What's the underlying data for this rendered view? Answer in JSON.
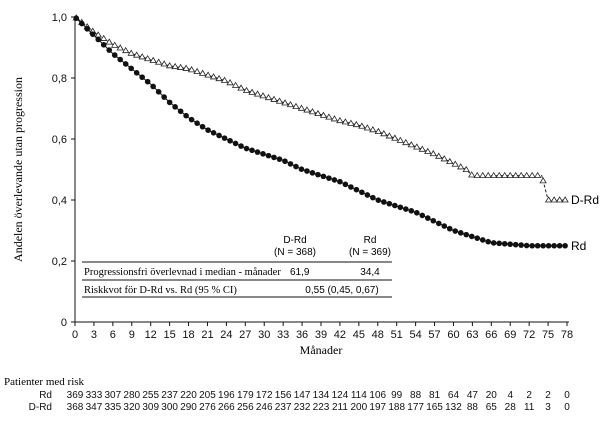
{
  "chart_data": {
    "type": "line",
    "title": "",
    "xlabel": "Månader",
    "ylabel": "Andelen överlevande utan progression",
    "xlim": [
      0,
      78
    ],
    "ylim": [
      0,
      1
    ],
    "xticks": [
      0,
      3,
      6,
      9,
      12,
      15,
      18,
      21,
      24,
      27,
      30,
      33,
      36,
      39,
      42,
      45,
      48,
      51,
      54,
      57,
      60,
      63,
      66,
      69,
      72,
      75,
      78
    ],
    "yticks": [
      "0",
      "0,2",
      "0,4",
      "0,6",
      "0,8",
      "1,0"
    ],
    "series": [
      {
        "name": "D-Rd",
        "style": "dashed",
        "marker": "triangle",
        "color": "#222222",
        "x": [
          0,
          3,
          6,
          9,
          12,
          15,
          18,
          21,
          24,
          27,
          30,
          33,
          36,
          39,
          42,
          45,
          48,
          51,
          54,
          57,
          60,
          62,
          63,
          66,
          69,
          72,
          74,
          75,
          78
        ],
        "y": [
          1.0,
          0.95,
          0.91,
          0.88,
          0.86,
          0.84,
          0.83,
          0.81,
          0.79,
          0.76,
          0.74,
          0.72,
          0.7,
          0.68,
          0.66,
          0.645,
          0.625,
          0.6,
          0.575,
          0.55,
          0.52,
          0.5,
          0.48,
          0.48,
          0.48,
          0.48,
          0.48,
          0.4,
          0.4
        ]
      },
      {
        "name": "Rd",
        "style": "solid",
        "marker": "circle",
        "color": "#111111",
        "x": [
          0,
          3,
          6,
          9,
          12,
          15,
          18,
          21,
          24,
          27,
          30,
          33,
          36,
          39,
          42,
          45,
          48,
          51,
          54,
          57,
          60,
          63,
          66,
          69,
          72,
          75,
          78
        ],
        "y": [
          1.0,
          0.94,
          0.88,
          0.83,
          0.78,
          0.72,
          0.67,
          0.63,
          0.6,
          0.57,
          0.55,
          0.53,
          0.5,
          0.48,
          0.46,
          0.43,
          0.4,
          0.38,
          0.36,
          0.33,
          0.3,
          0.28,
          0.26,
          0.255,
          0.25,
          0.25,
          0.25
        ]
      }
    ],
    "legend": {
      "header_drd": "D-Rd",
      "n_drd": "(N = 368)",
      "header_rd": "Rd",
      "n_rd": "(N = 369)",
      "row1_label": "Progressionsfri överlevnad i median - månader",
      "row1_drd": "61,9",
      "row1_rd": "34,4",
      "row2_label": "Riskkvot för D-Rd vs. Rd (95 % CI)",
      "row2_value": "0,55 (0,45, 0,67)"
    },
    "risk_table": {
      "title": "Patienter med risk",
      "rows": [
        {
          "label": "Rd",
          "values": [
            "369",
            "333",
            "307",
            "280",
            "255",
            "237",
            "220",
            "205",
            "196",
            "179",
            "172",
            "156",
            "147",
            "134",
            "124",
            "114",
            "106",
            "99",
            "88",
            "81",
            "64",
            "47",
            "20",
            "4",
            "2",
            "2",
            "0"
          ]
        },
        {
          "label": "D-Rd",
          "values": [
            "368",
            "347",
            "335",
            "320",
            "309",
            "300",
            "290",
            "276",
            "266",
            "256",
            "246",
            "237",
            "232",
            "223",
            "211",
            "200",
            "197",
            "188",
            "177",
            "165",
            "132",
            "88",
            "65",
            "28",
            "11",
            "3",
            "0"
          ]
        }
      ]
    }
  }
}
